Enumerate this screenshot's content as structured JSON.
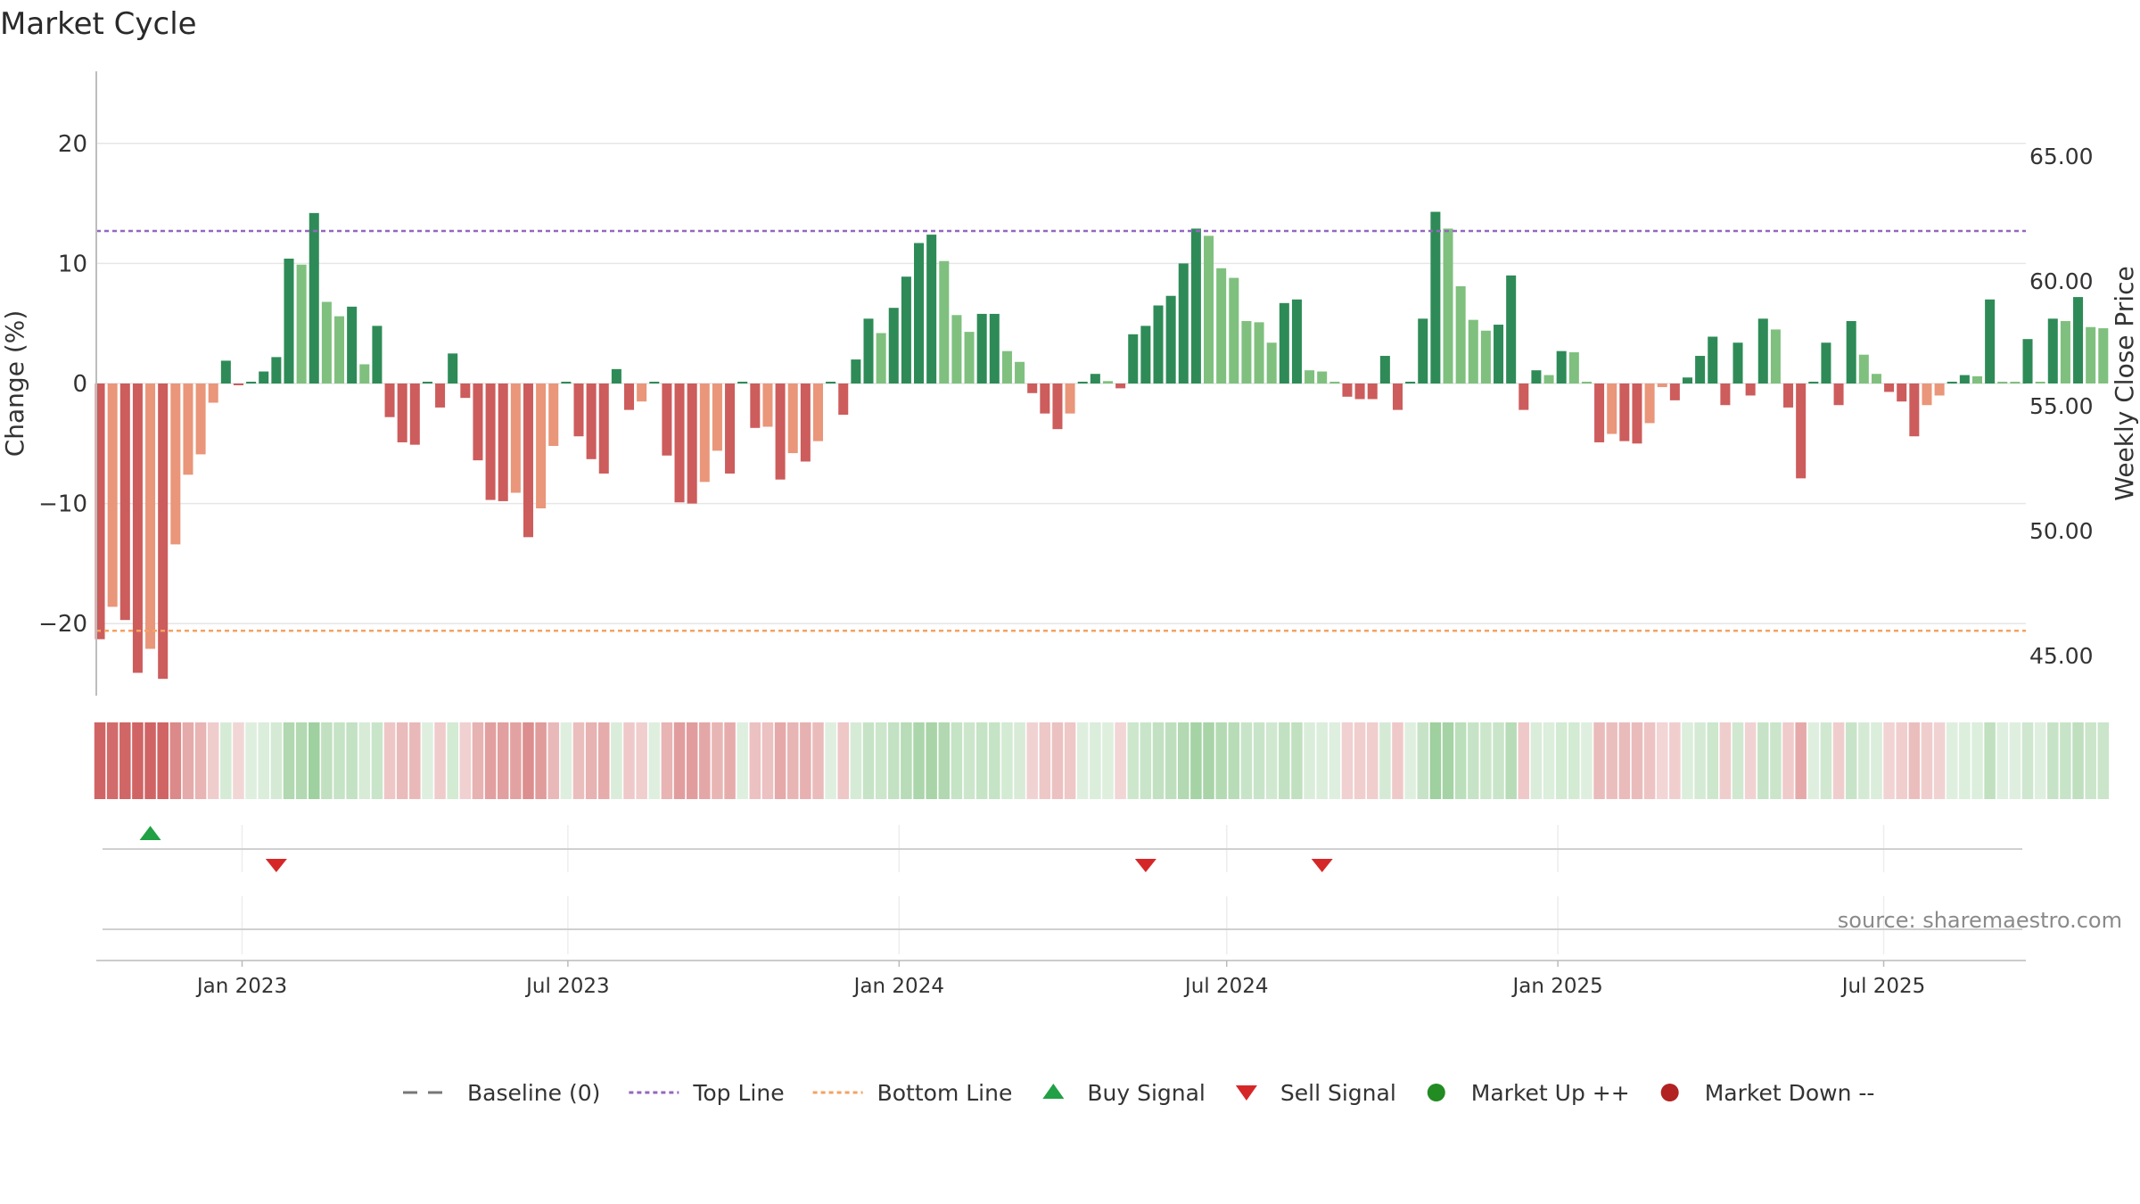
{
  "chart_data": {
    "type": "bar",
    "title": "Market Cycle",
    "ylabel": "Change (%)",
    "y2label": "Weekly Close Price",
    "ylim": [
      -26,
      26
    ],
    "y2lim": [
      43.4,
      68.4
    ],
    "yticks": [
      20,
      10,
      0,
      -10,
      -20
    ],
    "yticklabels": [
      "20",
      "10",
      "0",
      "−10",
      "−20"
    ],
    "y2ticks": [
      65,
      60,
      55,
      50,
      45
    ],
    "y2ticklabels": [
      "65.00",
      "60.00",
      "55.00",
      "50.00",
      "45.00"
    ],
    "xlim": [
      "2022-10-12",
      "2025-09-18"
    ],
    "xticks": [
      {
        "date": "2023-01-01",
        "label": "Jan 2023"
      },
      {
        "date": "2023-07-01",
        "label": "Jul 2023"
      },
      {
        "date": "2024-01-01",
        "label": "Jan 2024"
      },
      {
        "date": "2024-07-01",
        "label": "Jul 2024"
      },
      {
        "date": "2025-01-01",
        "label": "Jan 2025"
      },
      {
        "date": "2025-07-01",
        "label": "Jul 2025"
      }
    ],
    "first_week": "2022-10-14",
    "top_line": 12.7,
    "bottom_line": -20.6,
    "baseline": 0,
    "weekly_change": [
      -21.3,
      -18.6,
      -19.7,
      -24.1,
      -22.1,
      -24.6,
      -13.4,
      -7.6,
      -5.9,
      -1.6,
      1.9,
      -0.1,
      0.1,
      1.0,
      2.2,
      10.4,
      9.9,
      14.2,
      6.8,
      5.6,
      6.4,
      1.6,
      4.8,
      -2.8,
      -4.9,
      -5.1,
      0,
      -2.0,
      2.5,
      -1.2,
      -6.4,
      -9.7,
      -9.8,
      -9.1,
      -12.8,
      -10.4,
      -5.2,
      0,
      -4.4,
      -6.3,
      -7.5,
      1.2,
      -2.2,
      -1.5,
      0,
      -6.0,
      -9.9,
      -10.0,
      -8.2,
      -5.6,
      -7.5,
      0,
      -3.7,
      -3.6,
      -8.0,
      -5.8,
      -6.5,
      -4.8,
      0,
      -2.6,
      2.0,
      5.4,
      4.2,
      6.3,
      8.9,
      11.7,
      12.4,
      10.2,
      5.7,
      4.3,
      5.8,
      5.8,
      2.7,
      1.8,
      -0.8,
      -2.5,
      -3.8,
      -2.5,
      0,
      0.8,
      0.2,
      -0.4,
      4.1,
      4.8,
      6.5,
      7.3,
      10.0,
      12.9,
      12.3,
      9.6,
      8.8,
      5.2,
      5.1,
      3.4,
      6.7,
      7.0,
      1.1,
      1.0,
      0,
      -1.1,
      -1.3,
      -1.3,
      2.3,
      -2.2,
      0.1,
      5.4,
      14.3,
      12.9,
      8.1,
      5.3,
      4.4,
      4.9,
      9.0,
      -2.2,
      1.1,
      0.7,
      2.7,
      2.6,
      0,
      -4.9,
      -4.2,
      -4.8,
      -5.0,
      -3.3,
      -0.3,
      -1.4,
      0.5,
      2.3,
      3.9,
      -1.8,
      3.4,
      -1.0,
      5.4,
      4.5,
      -2.0,
      -7.9,
      0,
      3.4,
      -1.8,
      5.2,
      2.4,
      0.8,
      -0.7,
      -1.5,
      -4.4,
      -1.8,
      -1.0,
      0,
      0.7,
      0.6,
      7.0,
      0.1,
      0,
      3.7,
      0.1,
      5.4,
      5.2,
      7.2,
      4.7,
      4.6
    ],
    "colors": {
      "up_strong": "#2e8b57",
      "up_weak": "#7fc07f",
      "down_strong": "#cd5c5c",
      "down_weak": "#e9967a",
      "top_line": "#9467bd",
      "bottom_line": "#f4a261",
      "buy": "#22a045",
      "sell": "#d62728",
      "market_up": "#228b22",
      "market_down": "#b22222",
      "baseline": "#777777"
    },
    "signals": [
      {
        "type": "buy",
        "date": "2022-11-11"
      },
      {
        "type": "sell",
        "date": "2023-01-20"
      },
      {
        "type": "sell",
        "date": "2024-05-17"
      },
      {
        "type": "sell",
        "date": "2024-08-23"
      }
    ],
    "legend": [
      {
        "key": "baseline",
        "label": "Baseline (0)"
      },
      {
        "key": "top_line",
        "label": "Top Line"
      },
      {
        "key": "bottom_line",
        "label": "Bottom Line"
      },
      {
        "key": "buy",
        "label": "Buy Signal"
      },
      {
        "key": "sell",
        "label": "Sell Signal"
      },
      {
        "key": "market_up",
        "label": "Market Up ++"
      },
      {
        "key": "market_down",
        "label": "Market Down --"
      }
    ],
    "legend_position": "bottom-center",
    "source": "source: sharemaestro.com"
  }
}
